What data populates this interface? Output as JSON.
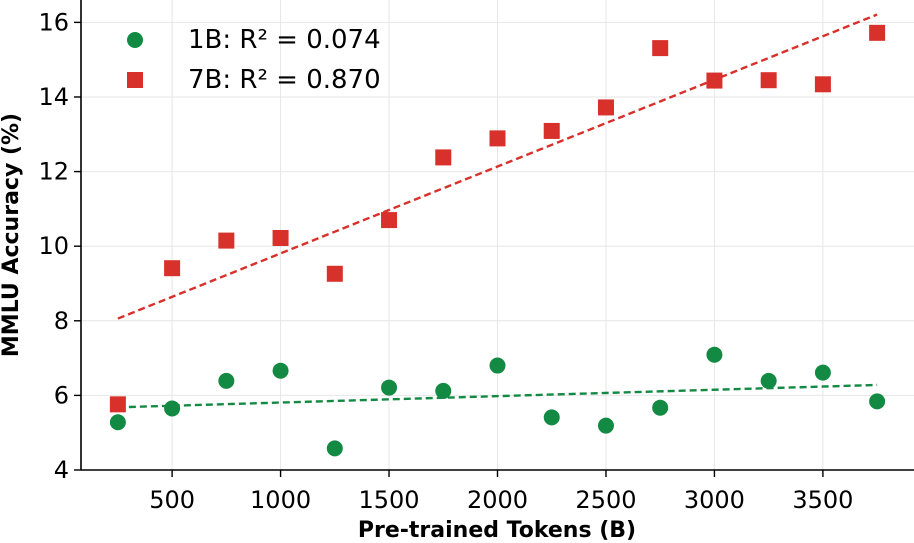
{
  "chart_data": {
    "type": "scatter",
    "title": "",
    "xlabel": "Pre-trained Tokens (B)",
    "ylabel": "MMLU Accuracy (%)",
    "xlim": [
      80,
      3920
    ],
    "ylim": [
      4,
      16.6
    ],
    "xticks": [
      500,
      1000,
      1500,
      2000,
      2500,
      3000,
      3500
    ],
    "yticks": [
      4,
      6,
      8,
      10,
      12,
      14,
      16
    ],
    "grid": true,
    "legend_position": "top-left",
    "series": [
      {
        "name": "1B",
        "legend_label": "1B: R² = 0.074",
        "marker": "circle",
        "color": "#138a43",
        "x": [
          250,
          500,
          750,
          1000,
          1250,
          1500,
          1750,
          2000,
          2250,
          2500,
          2750,
          3000,
          3250,
          3500,
          3750
        ],
        "values": [
          5.28,
          5.65,
          6.39,
          6.66,
          4.58,
          6.21,
          6.12,
          6.8,
          5.41,
          5.19,
          5.67,
          7.09,
          6.39,
          6.61,
          5.84
        ],
        "trendline": {
          "x": [
            250,
            3750
          ],
          "y": [
            5.68,
            6.28
          ]
        }
      },
      {
        "name": "7B",
        "legend_label": "7B: R² = 0.870",
        "marker": "square",
        "color": "#d8302a",
        "x": [
          250,
          500,
          750,
          1000,
          1250,
          1500,
          1750,
          2000,
          2250,
          2500,
          2750,
          3000,
          3250,
          3500,
          3750
        ],
        "values": [
          5.76,
          9.41,
          10.15,
          10.22,
          9.26,
          10.7,
          12.38,
          12.89,
          13.09,
          13.72,
          15.31,
          14.44,
          14.45,
          14.34,
          15.72
        ],
        "trendline": {
          "x": [
            250,
            3750
          ],
          "y": [
            8.06,
            16.21
          ]
        }
      }
    ]
  }
}
